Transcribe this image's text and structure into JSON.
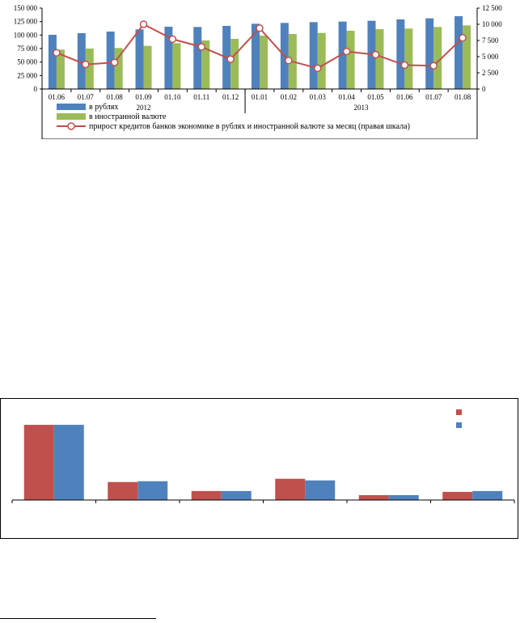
{
  "chart_data": [
    {
      "type": "bar",
      "categories": [
        "01.06",
        "01.07",
        "01.08",
        "01.09",
        "01.10",
        "01.11",
        "01.12",
        "01.01",
        "01.02",
        "01.03",
        "01.04",
        "01.05",
        "01.06",
        "01.07",
        "01.08"
      ],
      "groups": [
        {
          "label": "2012",
          "from": 0,
          "to": 6
        },
        {
          "label": "2013",
          "from": 7,
          "to": 14
        }
      ],
      "series": [
        {
          "name": "в рублях",
          "type": "bar",
          "axis": "left",
          "color": "#4f81bd",
          "values": [
            100500,
            103500,
            106500,
            110500,
            115500,
            115000,
            117000,
            121000,
            122500,
            124000,
            125000,
            126500,
            129000,
            131000,
            135000
          ]
        },
        {
          "name": "в иностранной  валюте",
          "type": "bar",
          "axis": "left",
          "color": "#9bbb59",
          "values": [
            73000,
            75000,
            76000,
            80000,
            85000,
            90000,
            93000,
            99000,
            102000,
            104000,
            108000,
            111000,
            112000,
            115000,
            118000
          ]
        },
        {
          "name": "прирост кредитов банков экономике в рублях и иностранной  валюте за месяц (правая  шкала)",
          "type": "line",
          "axis": "right",
          "color": "#c0504d",
          "values": [
            5600,
            3800,
            4100,
            10000,
            7700,
            6500,
            4600,
            9400,
            4400,
            3200,
            5800,
            5300,
            3700,
            3600,
            7900
          ]
        }
      ],
      "yleft": {
        "min": 0,
        "max": 150000,
        "ticks": [
          "0",
          "25 000",
          "50 000",
          "75 000",
          "100 000",
          "125 000",
          "150 000"
        ]
      },
      "yright": {
        "min": 0,
        "max": 12500,
        "ticks": [
          "0",
          "2 500",
          "5 000",
          "7 500",
          "10 000",
          "12 500"
        ]
      },
      "grid": false,
      "legend": "bottom"
    },
    {
      "type": "bar",
      "categories": [
        "",
        "",
        "",
        "",
        "",
        ""
      ],
      "series": [
        {
          "name": "",
          "color": "#c0504d",
          "values": [
            92,
            22,
            11,
            26,
            6,
            10
          ]
        },
        {
          "name": "",
          "color": "#4f81bd",
          "values": [
            92,
            23,
            11,
            24,
            6,
            11
          ]
        }
      ],
      "ylim": [
        0,
        100
      ],
      "legend": "top-right"
    }
  ]
}
